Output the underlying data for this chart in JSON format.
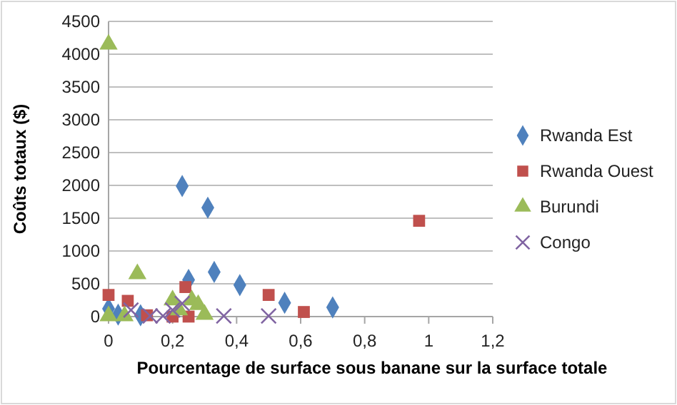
{
  "chart_data": {
    "type": "scatter",
    "xlabel": "Pourcentage de surface sous banane sur la surface totale",
    "ylabel": "Coûts totaux ($)",
    "xlim": [
      0,
      1.2
    ],
    "xticks": [
      0,
      {
        "value": 0.2,
        "label": "0,2"
      },
      {
        "value": 0.4,
        "label": "0,4"
      },
      {
        "value": 0.6,
        "label": "0,6"
      },
      {
        "value": 0.8,
        "label": "0,8"
      },
      {
        "value": 1,
        "label": "1"
      },
      {
        "value": 1.2,
        "label": "1,2"
      }
    ],
    "ylim": [
      0,
      4500
    ],
    "yticks": [
      0,
      500,
      1000,
      1500,
      2000,
      2500,
      3000,
      3500,
      4000,
      4500
    ],
    "grid": "y",
    "legend": "right",
    "series": [
      {
        "name": "Rwanda Est",
        "color": "#4f81bd",
        "marker": "diamond",
        "x": [
          0,
          0.03,
          0.1,
          0.23,
          0.25,
          0.31,
          0.33,
          0.41,
          0.55,
          0.7
        ],
        "values": [
          120,
          30,
          20,
          1990,
          560,
          1660,
          680,
          480,
          210,
          140
        ]
      },
      {
        "name": "Rwanda Ouest",
        "color": "#c0504d",
        "marker": "square",
        "x": [
          0,
          0.06,
          0.12,
          0.2,
          0.24,
          0.25,
          0.5,
          0.61,
          0.97
        ],
        "values": [
          330,
          240,
          20,
          0,
          450,
          0,
          330,
          70,
          1460
        ]
      },
      {
        "name": "Burundi",
        "color": "#9bbb59",
        "marker": "triangle",
        "x": [
          0,
          0,
          0.05,
          0.09,
          0.2,
          0.22,
          0.26,
          0.28,
          0.3
        ],
        "values": [
          4150,
          10,
          10,
          650,
          250,
          100,
          250,
          180,
          30
        ]
      },
      {
        "name": "Congo",
        "color": "#8064a2",
        "marker": "cross",
        "x": [
          0.07,
          0.13,
          0.17,
          0.2,
          0.23,
          0.36,
          0.5
        ],
        "values": [
          100,
          10,
          10,
          100,
          200,
          10,
          10
        ]
      }
    ]
  }
}
